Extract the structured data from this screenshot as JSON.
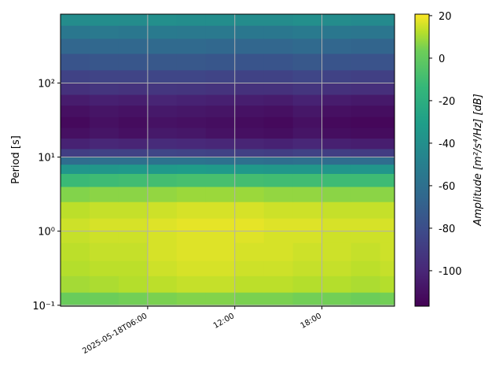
{
  "chart_data": {
    "type": "heatmap",
    "y_label": "Period [s]",
    "colorbar_label": "Amplitude [m²/s⁴/Hz] [dB]",
    "x_edges": [
      "2025-05-18T00:00",
      "2025-05-18T02:00",
      "2025-05-18T04:00",
      "2025-05-18T06:00",
      "2025-05-18T08:00",
      "2025-05-18T10:00",
      "2025-05-18T12:00",
      "2025-05-18T14:00",
      "2025-05-18T16:00",
      "2025-05-18T18:00",
      "2025-05-18T20:00",
      "2025-05-18T22:00",
      "2025-05-18T23:00"
    ],
    "y_edges": [
      0.097,
      0.15,
      0.25,
      0.4,
      0.7,
      1,
      1.5,
      2.5,
      4,
      6,
      8,
      10,
      13,
      18,
      25,
      35,
      50,
      70,
      100,
      150,
      250,
      400,
      600,
      850
    ],
    "values": [
      [
        2,
        3,
        4,
        5,
        6,
        6,
        5,
        5,
        4,
        4,
        3,
        4
      ],
      [
        10,
        11,
        12,
        13,
        14,
        14,
        13,
        13,
        12,
        12,
        11,
        12
      ],
      [
        12,
        13,
        13,
        15,
        16,
        16,
        15,
        15,
        14,
        14,
        13,
        14
      ],
      [
        13,
        14,
        14,
        16,
        17,
        17,
        16,
        16,
        15,
        15,
        14,
        15
      ],
      [
        14,
        15,
        15,
        16,
        17,
        17,
        17,
        16,
        16,
        15,
        15,
        15
      ],
      [
        15,
        16,
        16,
        17,
        18,
        18,
        18,
        17,
        17,
        16,
        16,
        16
      ],
      [
        13,
        14,
        14,
        15,
        16,
        16,
        16,
        15,
        15,
        14,
        14,
        14
      ],
      [
        6,
        7,
        7,
        8,
        9,
        9,
        9,
        8,
        8,
        7,
        7,
        7
      ],
      [
        -12,
        -11,
        -10,
        -9,
        -8,
        -8,
        -9,
        -10,
        -10,
        -11,
        -11,
        -11
      ],
      [
        -36,
        -35,
        -34,
        -33,
        -32,
        -33,
        -34,
        -35,
        -35,
        -36,
        -36,
        -36
      ],
      [
        -62,
        -60,
        -60,
        -58,
        -58,
        -59,
        -60,
        -61,
        -60,
        -62,
        -62,
        -62
      ],
      [
        -88,
        -86,
        -86,
        -84,
        -85,
        -86,
        -87,
        -88,
        -86,
        -88,
        -89,
        -89
      ],
      [
        -102,
        -100,
        -101,
        -98,
        -99,
        -100,
        -101,
        -102,
        -100,
        -103,
        -104,
        -104
      ],
      [
        -110,
        -108,
        -110,
        -106,
        -107,
        -109,
        -110,
        -111,
        -108,
        -111,
        -112,
        -112
      ],
      [
        -113,
        -110,
        -112,
        -109,
        -110,
        -111,
        -112,
        -113,
        -110,
        -113,
        -114,
        -114
      ],
      [
        -110,
        -108,
        -109,
        -106,
        -107,
        -108,
        -109,
        -110,
        -107,
        -110,
        -111,
        -111
      ],
      [
        -105,
        -103,
        -104,
        -101,
        -102,
        -103,
        -104,
        -105,
        -102,
        -105,
        -106,
        -106
      ],
      [
        -95,
        -93,
        -94,
        -92,
        -93,
        -94,
        -95,
        -95,
        -93,
        -95,
        -96,
        -96
      ],
      [
        -86,
        -85,
        -85,
        -84,
        -84,
        -85,
        -86,
        -86,
        -84,
        -86,
        -87,
        -87
      ],
      [
        -76,
        -75,
        -75,
        -74,
        -74,
        -75,
        -76,
        -76,
        -74,
        -76,
        -77,
        -77
      ],
      [
        -66,
        -65,
        -65,
        -64,
        -64,
        -65,
        -66,
        -66,
        -64,
        -66,
        -67,
        -67
      ],
      [
        -55,
        -54,
        -55,
        -53,
        -54,
        -54,
        -55,
        -55,
        -53,
        -55,
        -56,
        -56
      ],
      [
        -42,
        -41,
        -42,
        -40,
        -41,
        -41,
        -42,
        -42,
        -40,
        -42,
        -43,
        -43
      ]
    ],
    "colormap": "viridis",
    "xlim": [
      "2025-05-18T00:00",
      "2025-05-18T23:00"
    ],
    "xticks": [
      "2025-05-18T06:00",
      {
        "value": "2025-05-18T12:00",
        "label": "12:00"
      },
      {
        "value": "2025-05-18T18:00",
        "label": "18:00"
      }
    ],
    "ylim": [
      0.097,
      850
    ],
    "y_log": true,
    "yticks": [
      {
        "value": 0.1,
        "label": "10⁻¹"
      },
      {
        "value": 1,
        "label": "10⁰"
      },
      {
        "value": 10,
        "label": "10¹"
      },
      {
        "value": 100,
        "label": "10²"
      }
    ],
    "clim": [
      -116.7,
      20.7
    ],
    "cticks": [
      -100,
      -80,
      -60,
      -40,
      -20,
      0,
      20
    ],
    "grid": true
  }
}
